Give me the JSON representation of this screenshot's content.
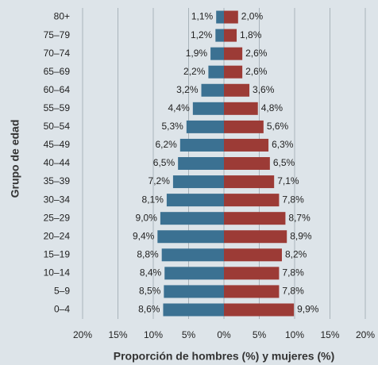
{
  "chart_data": {
    "type": "pyramid",
    "xlabel": "Proporción de hombres (%) y mujeres (%)",
    "ylabel": "Grupo de edad",
    "categories": [
      "80+",
      "75–79",
      "70–74",
      "65–69",
      "60–64",
      "55–59",
      "50–54",
      "45–49",
      "40–44",
      "35–39",
      "30–34",
      "25–29",
      "20–24",
      "15–19",
      "10–14",
      "5–9",
      "0–4"
    ],
    "series": [
      {
        "color": "#3b7192",
        "values": [
          1.1,
          1.2,
          1.9,
          2.2,
          3.2,
          4.4,
          5.3,
          6.2,
          6.5,
          7.2,
          8.1,
          9.0,
          9.4,
          8.8,
          8.4,
          8.5,
          8.6
        ],
        "value_labels": [
          "1,1%",
          "1,2%",
          "1,9%",
          "2,2%",
          "3,2%",
          "4,4%",
          "5,3%",
          "6,2%",
          "6,5%",
          "7,2%",
          "8,1%",
          "9,0%",
          "9,4%",
          "8,8%",
          "8,4%",
          "8,5%",
          "8,6%"
        ]
      },
      {
        "color": "#9c3b36",
        "values": [
          2.0,
          1.8,
          2.6,
          2.6,
          3.6,
          4.8,
          5.6,
          6.3,
          6.5,
          7.1,
          7.8,
          8.7,
          8.9,
          8.2,
          7.8,
          7.8,
          9.9
        ],
        "value_labels": [
          "2,0%",
          "1,8%",
          "2,6%",
          "2,6%",
          "3,6%",
          "4,8%",
          "5,6%",
          "6,3%",
          "6,5%",
          "7,1%",
          "7,8%",
          "8,7%",
          "8,9%",
          "8,2%",
          "7,8%",
          "7,8%",
          "9,9%"
        ]
      }
    ],
    "xlim": [
      -20,
      20
    ],
    "xticks": [
      {
        "value": -20,
        "label": "20%"
      },
      {
        "value": -15,
        "label": "15%"
      },
      {
        "value": -10,
        "label": "10%"
      },
      {
        "value": -5,
        "label": "5%"
      },
      {
        "value": 0,
        "label": "0%"
      },
      {
        "value": 5,
        "label": "5%"
      },
      {
        "value": 10,
        "label": "10%"
      },
      {
        "value": 15,
        "label": "15%"
      },
      {
        "value": 20,
        "label": "20%"
      }
    ],
    "grid": true
  }
}
